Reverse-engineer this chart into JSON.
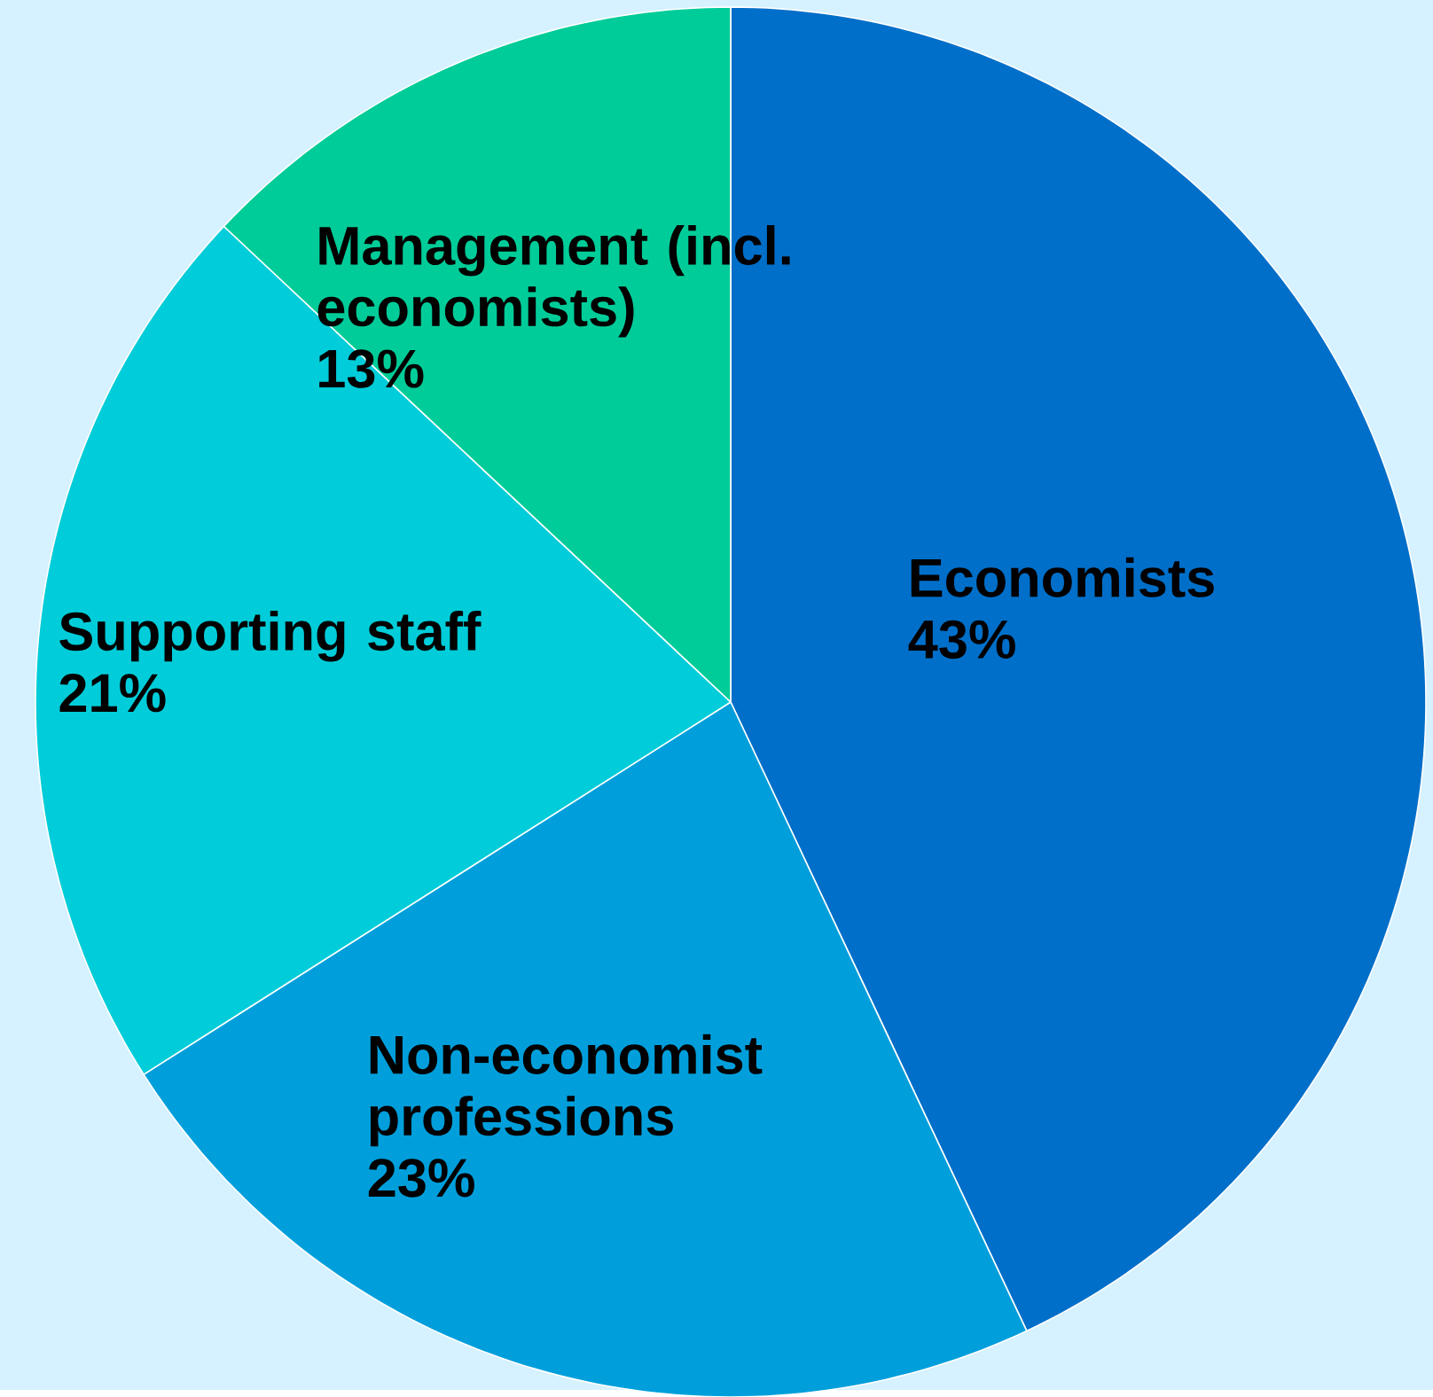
{
  "chart_data": {
    "type": "pie",
    "categories": [
      "Economists",
      "Non-economist professions",
      "Supporting staff",
      "Management (incl. economists)"
    ],
    "values": [
      43,
      23,
      21,
      13
    ],
    "value_labels": [
      "43%",
      "23%",
      "21%",
      "13%"
    ],
    "colors": [
      "#006fc9",
      "#009fdb",
      "#00cdd9",
      "#00cc99"
    ]
  }
}
